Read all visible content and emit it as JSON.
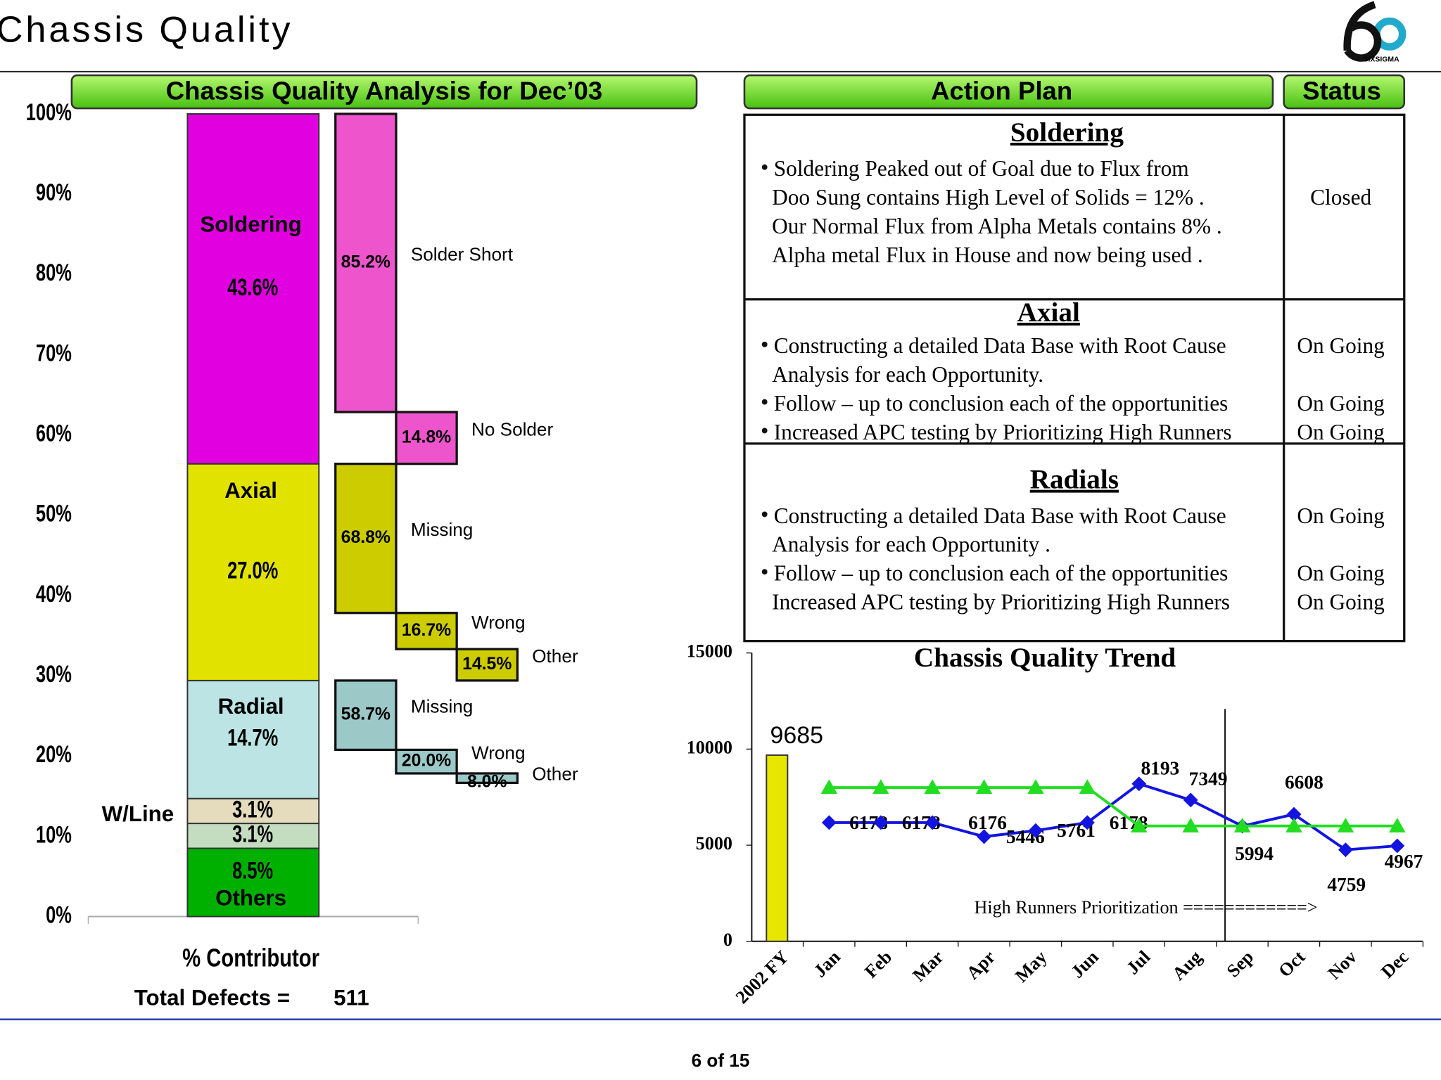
{
  "header": {
    "title": "Chassis Quality",
    "logo_text": "SIXSIGMA"
  },
  "analysis": {
    "title": "Chassis Quality  Analysis for Dec’03",
    "ylim": [
      0,
      100
    ],
    "yticks": [
      {
        "value": 0,
        "label": "0%"
      },
      {
        "value": 10,
        "label": "10%"
      },
      {
        "value": 20,
        "label": "20%"
      },
      {
        "value": 30,
        "label": "30%"
      },
      {
        "value": 40,
        "label": "40%"
      },
      {
        "value": 50,
        "label": "50%"
      },
      {
        "value": 60,
        "label": "60%"
      },
      {
        "value": 70,
        "label": "70%"
      },
      {
        "value": 80,
        "label": "80%"
      },
      {
        "value": 90,
        "label": "90%"
      },
      {
        "value": 100,
        "label": "100%"
      }
    ],
    "segments": [
      {
        "name": "Others",
        "value": 8.5,
        "label": "8.5%",
        "color": "#00b000"
      },
      {
        "value": 3.1,
        "label": "3.1%",
        "color": "#c4dcc0"
      },
      {
        "value": 3.1,
        "label": "3.1%",
        "color": "#e4dcbc"
      },
      {
        "name": "Radial",
        "value": 14.7,
        "label": "14.7%",
        "color": "#bce4e4",
        "breakdown": [
          {
            "name": "Missing",
            "value": 58.7,
            "label": "58.7%"
          },
          {
            "name": "Wrong",
            "value": 20.0,
            "label": "20.0%"
          },
          {
            "name": "Other",
            "value": 8.0,
            "label": "8.0%"
          }
        ],
        "sub_color": "#9cc8c8"
      },
      {
        "name": "Axial",
        "value": 27.0,
        "label": "27.0%",
        "color": "#e2e200",
        "breakdown": [
          {
            "name": "Missing",
            "value": 68.8,
            "label": "68.8%"
          },
          {
            "name": "Wrong",
            "value": 16.7,
            "label": "16.7%"
          },
          {
            "name": "Other",
            "value": 14.5,
            "label": "14.5%"
          }
        ],
        "sub_color": "#cccc00"
      },
      {
        "name": "Soldering",
        "value": 43.6,
        "label": "43.6%",
        "color": "#e000e0",
        "breakdown": [
          {
            "name": "Solder Short",
            "value": 85.2,
            "label": "85.2%"
          },
          {
            "name": "No Solder",
            "value": 14.8,
            "label": "14.8%"
          }
        ],
        "sub_color": "#ee55cc"
      }
    ],
    "group_label": "W/Line",
    "x_label": "% Contributor",
    "total_label": "Total Defects =",
    "total": 511
  },
  "action_plan": {
    "title": "Action Plan",
    "status_title": "Status",
    "sections": [
      {
        "heading": "Soldering",
        "lines": [
          {
            "text": "Soldering Peaked out of Goal due to Flux from",
            "bullet": true
          },
          {
            "text": "Doo Sung   contains High Level of Solids = 12%  .",
            "bullet": false,
            "status": "Closed"
          },
          {
            "text": "Our Normal Flux  from Alpha Metals contains 8% .",
            "bullet": false
          },
          {
            "text": "Alpha metal Flux   in House and now being used .",
            "bullet": false
          }
        ]
      },
      {
        "heading": "Axial",
        "lines": [
          {
            "text": "Constructing a detailed Data Base with Root Cause",
            "bullet": true,
            "status": "On Going"
          },
          {
            "text": "Analysis for  each Opportunity.",
            "bullet": false
          },
          {
            "text": "Follow – up to conclusion each of the opportunities",
            "bullet": true,
            "status": "On Going"
          },
          {
            "text": "Increased APC testing by Prioritizing High Runners",
            "bullet": true,
            "status": "On Going"
          }
        ]
      },
      {
        "heading": "Radials",
        "lines": [
          {
            "text": "Constructing a detailed Data Base with Root Cause",
            "bullet": true,
            "status": "On Going"
          },
          {
            "text": "Analysis for  each Opportunity  .",
            "bullet": false
          },
          {
            "text": "Follow – up to conclusion each of the opportunities",
            "bullet": true,
            "status": "On Going"
          },
          {
            "text": "Increased APC testing by Prioritizing High Runners",
            "bullet": false,
            "status": "On Going"
          }
        ]
      }
    ]
  },
  "chart_data": {
    "type": "line",
    "title": "Chassis Quality Trend",
    "categories": [
      "2002 FY",
      "Jan",
      "Feb",
      "Mar",
      "Apr",
      "May",
      "Jun",
      "Jul",
      "Aug",
      "Sep",
      "Oct",
      "Nov",
      "Dec"
    ],
    "series": [
      {
        "type": "bar",
        "color": "#e6e600",
        "labels": true,
        "values": [
          9685,
          null,
          null,
          null,
          null,
          null,
          null,
          null,
          null,
          null,
          null,
          null,
          null
        ]
      },
      {
        "type": "line",
        "color": "#1414e0",
        "marker": "diamond",
        "labels": true,
        "values": [
          null,
          6178,
          6178,
          6176,
          5446,
          5761,
          6178,
          8193,
          7349,
          5994,
          6608,
          4759,
          4967
        ]
      },
      {
        "type": "line",
        "color": "#22dd22",
        "marker": "triangle",
        "labels": false,
        "values": [
          null,
          8000,
          8000,
          8000,
          8000,
          8000,
          8000,
          6000,
          6000,
          6000,
          6000,
          6000,
          6000
        ]
      }
    ],
    "ylim": [
      0,
      15000
    ],
    "yticks": [
      0,
      5000,
      10000,
      15000
    ],
    "annotation": "High Runners Prioritization ============>"
  },
  "footer": {
    "page": "6 of 15"
  }
}
